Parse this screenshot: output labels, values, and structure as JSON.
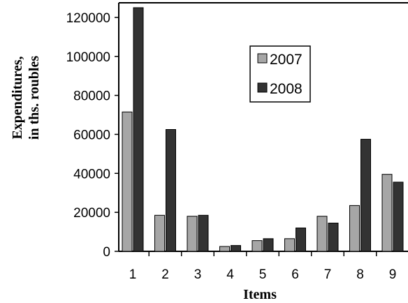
{
  "chart_data": {
    "type": "bar",
    "title": "",
    "xlabel": "Items",
    "ylabel_lines": [
      "Expenditures,",
      "in ths. roubles"
    ],
    "categories": [
      "1",
      "2",
      "3",
      "4",
      "5",
      "6",
      "7",
      "8",
      "9"
    ],
    "series": [
      {
        "name": "2007",
        "color": "#a6a6a6",
        "values": [
          71500,
          18500,
          18000,
          2500,
          5500,
          6500,
          18000,
          23500,
          39500
        ]
      },
      {
        "name": "2008",
        "color": "#333333",
        "values": [
          125000,
          62500,
          18500,
          3000,
          6500,
          12000,
          14500,
          57500,
          35500
        ]
      }
    ],
    "ylim": [
      0,
      125000
    ],
    "yticks": [
      0,
      20000,
      40000,
      60000,
      80000,
      100000,
      120000
    ],
    "ytick_labels": [
      "0",
      "20000",
      "40000",
      "60000",
      "80000",
      "100000",
      "120000"
    ],
    "grid": false,
    "legend_position": "top-center"
  }
}
